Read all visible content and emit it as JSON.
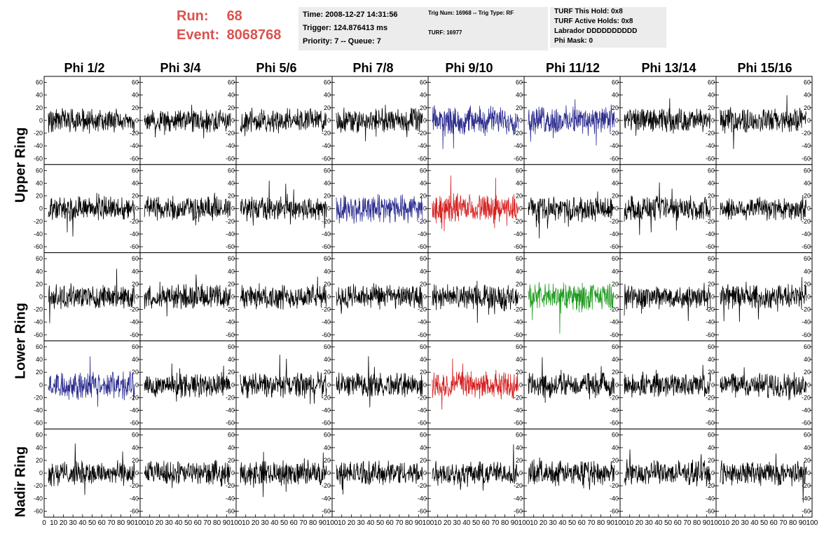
{
  "header": {
    "run_label": "Run:",
    "run_value": "68",
    "event_label": "Event:",
    "event_value": "8068768",
    "accent_color": "#d9534f",
    "box1": {
      "time": "Time: 2008-12-27 14:31:56",
      "trigger": "Trigger: 124.876413 ms",
      "priority": "Priority: 7 -- Queue: 7"
    },
    "box2": {
      "trig": "Trig Num: 16968 -- Trig Type: RF",
      "turf": "TURF: 16977"
    },
    "box3": {
      "hold": "TURF This Hold: 0x8",
      "active": "TURF Active Holds: 0x8",
      "labrador": "Labrador DDDDDDDDDD",
      "mask": "Phi Mask: 0"
    }
  },
  "columns": [
    "Phi 1/2",
    "Phi 3/4",
    "Phi 5/6",
    "Phi 7/8",
    "Phi 9/10",
    "Phi 11/12",
    "Phi 13/14",
    "Phi 15/16"
  ],
  "rings": [
    "Upper Ring",
    "Lower Ring",
    "Nadir Ring"
  ],
  "chart_data": {
    "type": "line",
    "rows": 5,
    "cols": 8,
    "ylim": [
      -65,
      65
    ],
    "xlim": [
      0,
      100
    ],
    "y_ticks": [
      "60",
      "40",
      "20",
      "0",
      "-20",
      "-40",
      "-60"
    ],
    "x_ticks": [
      "0",
      "10",
      "20",
      "30",
      "40",
      "50",
      "60",
      "70",
      "80",
      "90",
      "100"
    ],
    "colors": {
      "default": "#000000",
      "blue": "#2b2b8f",
      "red": "#d62020",
      "green": "#1f9a1f"
    },
    "highlights": [
      {
        "row": 0,
        "col": 4,
        "color": "blue"
      },
      {
        "row": 0,
        "col": 5,
        "color": "blue"
      },
      {
        "row": 1,
        "col": 3,
        "color": "blue"
      },
      {
        "row": 1,
        "col": 4,
        "color": "red"
      },
      {
        "row": 2,
        "col": 5,
        "color": "green"
      },
      {
        "row": 3,
        "col": 0,
        "color": "blue"
      },
      {
        "row": 3,
        "col": 4,
        "color": "red"
      }
    ],
    "amplitude": 15
  }
}
